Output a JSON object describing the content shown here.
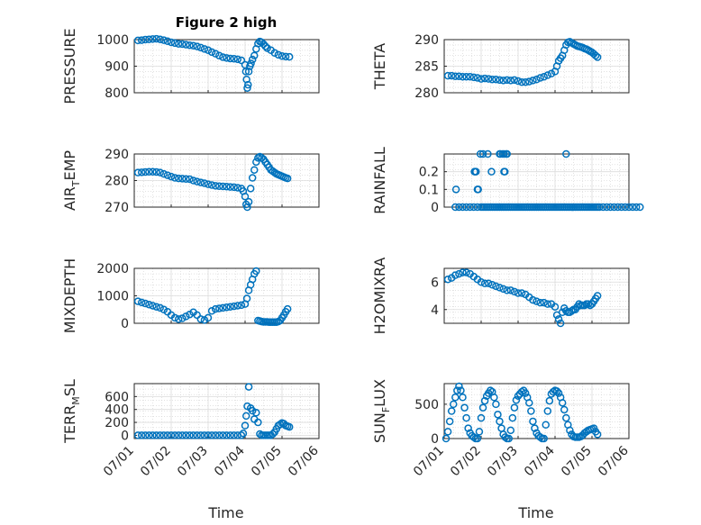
{
  "figure": {
    "title": "Figure 2 high",
    "xlabel": "Time"
  },
  "colors": {
    "marker": "#0072BD",
    "axes": "#262626",
    "grid": "#dcdcdc"
  },
  "chart_data": [
    {
      "type": "scatter",
      "ylabel": [
        "PRESSURE"
      ],
      "title": "Figure 2 high",
      "ylim": [
        800,
        1000
      ],
      "yticks": [
        800,
        900,
        1000
      ],
      "xlim": [
        "07/01",
        "07/06"
      ],
      "xticks": [],
      "x_day": [
        0.1,
        0.2,
        0.3,
        0.4,
        0.5,
        0.6,
        0.7,
        0.8,
        0.9,
        1.0,
        1.1,
        1.2,
        1.3,
        1.4,
        1.5,
        1.6,
        1.7,
        1.8,
        1.9,
        2.0,
        2.1,
        2.2,
        2.3,
        2.4,
        2.5,
        2.6,
        2.7,
        2.8,
        2.9,
        3.0,
        3.02,
        3.04,
        3.06,
        3.08,
        3.1,
        3.13,
        3.16,
        3.2,
        3.25,
        3.3,
        3.35,
        3.4,
        3.45,
        3.5,
        3.55,
        3.6,
        3.7,
        3.8,
        3.9,
        4.0,
        4.1,
        4.2
      ],
      "y": [
        997,
        998,
        1000,
        1001,
        1002,
        1003,
        1001,
        998,
        994,
        990,
        987,
        984,
        983,
        981,
        979,
        977,
        974,
        970,
        965,
        960,
        953,
        947,
        940,
        934,
        931,
        929,
        928,
        926,
        922,
        905,
        880,
        850,
        818,
        830,
        880,
        900,
        910,
        925,
        940,
        965,
        985,
        993,
        990,
        983,
        975,
        968,
        960,
        950,
        943,
        938,
        936,
        935
      ]
    },
    {
      "type": "scatter",
      "ylabel": [
        "THETA"
      ],
      "ylim": [
        280,
        290
      ],
      "yticks": [
        280,
        285,
        290
      ],
      "xlim": [
        "07/01",
        "07/06"
      ],
      "xticks": [],
      "x_day": [
        0.1,
        0.2,
        0.3,
        0.4,
        0.5,
        0.6,
        0.7,
        0.8,
        0.9,
        1.0,
        1.1,
        1.2,
        1.3,
        1.4,
        1.5,
        1.6,
        1.7,
        1.8,
        1.9,
        2.0,
        2.1,
        2.2,
        2.3,
        2.4,
        2.5,
        2.6,
        2.7,
        2.8,
        2.9,
        3.0,
        3.05,
        3.1,
        3.15,
        3.2,
        3.25,
        3.3,
        3.35,
        3.4,
        3.45,
        3.5,
        3.55,
        3.6,
        3.65,
        3.7,
        3.75,
        3.8,
        3.85,
        3.9,
        3.95,
        4.0,
        4.05,
        4.1,
        4.15
      ],
      "y": [
        283.2,
        283.2,
        283.1,
        283.1,
        283.0,
        283.0,
        283.0,
        282.9,
        282.8,
        282.6,
        282.7,
        282.6,
        282.5,
        282.5,
        282.4,
        282.3,
        282.4,
        282.3,
        282.4,
        282.2,
        282.0,
        282.0,
        282.1,
        282.3,
        282.5,
        282.8,
        283.0,
        283.3,
        283.6,
        284.0,
        285.0,
        286.0,
        286.5,
        287.0,
        288.0,
        289.0,
        289.5,
        289.6,
        289.4,
        289.2,
        289.0,
        288.8,
        288.7,
        288.6,
        288.5,
        288.3,
        288.2,
        288.0,
        287.8,
        287.6,
        287.3,
        287.0,
        286.7
      ]
    },
    {
      "type": "scatter",
      "ylabel": [
        "AIR",
        "T",
        "EMP"
      ],
      "ylim": [
        270,
        290
      ],
      "yticks": [
        270,
        280,
        290
      ],
      "xlim": [
        "07/01",
        "07/06"
      ],
      "xticks": [],
      "x_day": [
        0.1,
        0.2,
        0.3,
        0.4,
        0.5,
        0.6,
        0.7,
        0.8,
        0.9,
        1.0,
        1.1,
        1.2,
        1.3,
        1.4,
        1.5,
        1.6,
        1.7,
        1.8,
        1.9,
        2.0,
        2.1,
        2.2,
        2.3,
        2.4,
        2.5,
        2.6,
        2.7,
        2.8,
        2.9,
        2.95,
        3.0,
        3.03,
        3.06,
        3.1,
        3.15,
        3.2,
        3.25,
        3.3,
        3.35,
        3.4,
        3.45,
        3.5,
        3.55,
        3.6,
        3.65,
        3.7,
        3.75,
        3.8,
        3.85,
        3.9,
        3.95,
        4.0,
        4.05,
        4.1,
        4.15
      ],
      "y": [
        283.0,
        283.1,
        283.2,
        283.3,
        283.3,
        283.2,
        283.0,
        282.5,
        282.0,
        281.5,
        281.0,
        280.8,
        280.7,
        280.6,
        280.5,
        280.0,
        279.6,
        279.3,
        279.0,
        278.6,
        278.3,
        278.0,
        277.9,
        277.8,
        277.7,
        277.6,
        277.5,
        277.3,
        277.0,
        276.0,
        274.0,
        271.0,
        270.0,
        272.0,
        277.0,
        281.0,
        284.0,
        287.0,
        288.5,
        289.0,
        288.5,
        288.0,
        287.0,
        286.0,
        285.0,
        284.0,
        283.5,
        283.0,
        282.5,
        282.2,
        281.9,
        281.6,
        281.3,
        281.0,
        280.8
      ]
    },
    {
      "type": "scatter",
      "ylabel": [
        "RAINFALL"
      ],
      "ylim": [
        0,
        0.3
      ],
      "yticks": [
        0,
        0.1,
        0.2
      ],
      "xlim": [
        "07/01",
        "07/06"
      ],
      "xticks": [],
      "x_day": [
        0.3,
        0.4,
        0.5,
        0.6,
        0.7,
        0.8,
        0.9,
        1.0,
        1.05,
        1.1,
        1.15,
        1.2,
        1.25,
        1.3,
        1.35,
        1.4,
        1.45,
        1.5,
        1.55,
        1.6,
        1.65,
        1.7,
        1.75,
        1.8,
        1.85,
        1.9,
        1.95,
        2.0,
        2.05,
        2.1,
        2.15,
        2.2,
        2.25,
        2.3,
        2.35,
        2.4,
        2.45,
        2.5,
        2.55,
        2.6,
        2.65,
        2.7,
        2.75,
        2.8,
        2.85,
        2.9,
        2.95,
        3.0,
        3.05,
        3.1,
        3.15,
        3.2,
        3.25,
        3.3,
        3.35,
        3.4,
        3.45,
        3.5,
        3.55,
        3.6,
        3.65,
        3.7,
        3.75,
        3.8,
        3.85,
        3.9,
        3.95,
        4.0,
        4.05,
        4.1,
        4.15,
        4.2,
        4.3,
        4.4,
        4.5,
        4.6,
        4.7,
        4.8,
        4.9,
        5.0,
        5.1,
        5.2,
        5.3,
        0.32,
        0.82,
        0.84,
        0.9,
        0.92,
        0.86,
        0.98,
        1.05,
        1.18,
        1.28,
        1.5,
        1.52,
        1.58,
        1.62,
        1.68,
        1.7,
        1.62,
        1.64,
        3.3
      ],
      "y": [
        0,
        0,
        0,
        0,
        0,
        0,
        0,
        0,
        0,
        0,
        0,
        0,
        0,
        0,
        0,
        0,
        0,
        0,
        0,
        0,
        0,
        0,
        0,
        0,
        0,
        0,
        0,
        0,
        0,
        0,
        0,
        0,
        0,
        0,
        0,
        0,
        0,
        0,
        0,
        0,
        0,
        0,
        0,
        0,
        0,
        0,
        0,
        0,
        0,
        0,
        0,
        0,
        0,
        0,
        0,
        0,
        0,
        0,
        0,
        0,
        0,
        0,
        0,
        0,
        0,
        0,
        0,
        0,
        0,
        0,
        0,
        0,
        0,
        0,
        0,
        0,
        0,
        0,
        0,
        0,
        0,
        0,
        0,
        0.1,
        0.2,
        0.2,
        0.1,
        0.1,
        0.2,
        0.3,
        0.3,
        0.3,
        0.2,
        0.3,
        0.3,
        0.3,
        0.3,
        0.3,
        0.3,
        0.2,
        0.2,
        0.3
      ]
    },
    {
      "type": "scatter",
      "ylabel": [
        "MIXDEPTH"
      ],
      "ylim": [
        0,
        2000
      ],
      "yticks": [
        0,
        1000,
        2000
      ],
      "xlim": [
        "07/01",
        "07/06"
      ],
      "xticks": [],
      "x_day": [
        0.1,
        0.2,
        0.3,
        0.4,
        0.5,
        0.6,
        0.7,
        0.8,
        0.9,
        1.0,
        1.1,
        1.2,
        1.3,
        1.4,
        1.5,
        1.6,
        1.7,
        1.8,
        1.9,
        2.0,
        2.1,
        2.2,
        2.3,
        2.4,
        2.5,
        2.6,
        2.7,
        2.8,
        2.9,
        3.0,
        3.05,
        3.1,
        3.15,
        3.2,
        3.25,
        3.3,
        3.35,
        3.4,
        3.45,
        3.5,
        3.55,
        3.6,
        3.65,
        3.7,
        3.75,
        3.8,
        3.85,
        3.9,
        3.95,
        4.0,
        4.05,
        4.1,
        4.15
      ],
      "y": [
        800,
        760,
        720,
        680,
        640,
        600,
        560,
        500,
        420,
        300,
        200,
        150,
        180,
        250,
        320,
        400,
        300,
        150,
        120,
        200,
        450,
        520,
        540,
        560,
        580,
        600,
        620,
        640,
        660,
        700,
        900,
        1200,
        1400,
        1600,
        1800,
        1900,
        100,
        80,
        60,
        50,
        50,
        50,
        40,
        40,
        40,
        40,
        40,
        60,
        100,
        200,
        300,
        420,
        520
      ]
    },
    {
      "type": "scatter",
      "ylabel": [
        "H2OMIXRA"
      ],
      "ylim": [
        3,
        7
      ],
      "yticks": [
        4,
        6
      ],
      "xlim": [
        "07/01",
        "07/06"
      ],
      "xticks": [],
      "x_day": [
        0.1,
        0.2,
        0.3,
        0.4,
        0.5,
        0.6,
        0.7,
        0.8,
        0.9,
        1.0,
        1.1,
        1.2,
        1.3,
        1.4,
        1.5,
        1.6,
        1.7,
        1.8,
        1.9,
        2.0,
        2.1,
        2.2,
        2.3,
        2.4,
        2.5,
        2.6,
        2.7,
        2.8,
        2.9,
        3.0,
        3.05,
        3.1,
        3.15,
        3.2,
        3.25,
        3.3,
        3.35,
        3.4,
        3.45,
        3.5,
        3.55,
        3.6,
        3.65,
        3.7,
        3.75,
        3.8,
        3.85,
        3.9,
        3.95,
        4.0,
        4.05,
        4.1,
        4.15
      ],
      "y": [
        6.2,
        6.3,
        6.5,
        6.6,
        6.7,
        6.7,
        6.6,
        6.4,
        6.2,
        6.0,
        5.9,
        5.9,
        5.8,
        5.7,
        5.6,
        5.5,
        5.4,
        5.4,
        5.3,
        5.2,
        5.2,
        5.1,
        4.9,
        4.7,
        4.6,
        4.5,
        4.5,
        4.4,
        4.4,
        4.2,
        3.6,
        3.3,
        3.0,
        3.8,
        4.1,
        3.9,
        3.8,
        3.8,
        3.9,
        4.0,
        4.0,
        4.2,
        4.4,
        4.3,
        4.3,
        4.3,
        4.4,
        4.4,
        4.3,
        4.4,
        4.6,
        4.8,
        5.0
      ]
    },
    {
      "type": "scatter",
      "ylabel": [
        "TERR",
        "M",
        "SL"
      ],
      "ylim": [
        -50,
        800
      ],
      "yticks": [
        0,
        200,
        400,
        600
      ],
      "xlim": [
        "07/01",
        "07/06"
      ],
      "xticks": [
        "07/01",
        "07/02",
        "07/03",
        "07/04",
        "07/05",
        "07/06"
      ],
      "x_day": [
        0.1,
        0.2,
        0.3,
        0.4,
        0.5,
        0.6,
        0.7,
        0.8,
        0.9,
        1.0,
        1.1,
        1.2,
        1.3,
        1.4,
        1.5,
        1.6,
        1.7,
        1.8,
        1.9,
        2.0,
        2.1,
        2.2,
        2.3,
        2.4,
        2.5,
        2.6,
        2.7,
        2.8,
        2.9,
        2.95,
        3.0,
        3.03,
        3.06,
        3.1,
        3.15,
        3.2,
        3.25,
        3.3,
        3.35,
        3.4,
        3.45,
        3.5,
        3.55,
        3.6,
        3.65,
        3.7,
        3.75,
        3.8,
        3.85,
        3.9,
        3.95,
        4.0,
        4.05,
        4.1,
        4.15,
        4.2
      ],
      "y": [
        0,
        0,
        0,
        0,
        0,
        0,
        0,
        0,
        0,
        0,
        0,
        0,
        0,
        0,
        0,
        0,
        0,
        0,
        0,
        0,
        0,
        0,
        0,
        0,
        0,
        0,
        0,
        0,
        0,
        30,
        150,
        300,
        450,
        750,
        420,
        380,
        250,
        350,
        200,
        20,
        0,
        0,
        0,
        0,
        0,
        0,
        20,
        50,
        100,
        150,
        170,
        190,
        180,
        150,
        140,
        130
      ]
    },
    {
      "type": "scatter",
      "ylabel": [
        "SUN",
        "F",
        "LUX"
      ],
      "ylim": [
        0,
        800
      ],
      "yticks": [
        0,
        500
      ],
      "xlim": [
        "07/01",
        "07/06"
      ],
      "xticks": [
        "07/01",
        "07/02",
        "07/03",
        "07/04",
        "07/05",
        "07/06"
      ],
      "x_day": [
        0.05,
        0.1,
        0.15,
        0.2,
        0.25,
        0.3,
        0.35,
        0.4,
        0.45,
        0.5,
        0.55,
        0.6,
        0.65,
        0.7,
        0.75,
        0.8,
        0.85,
        0.9,
        0.95,
        1.0,
        1.05,
        1.1,
        1.15,
        1.2,
        1.25,
        1.3,
        1.35,
        1.4,
        1.45,
        1.5,
        1.55,
        1.6,
        1.65,
        1.7,
        1.75,
        1.8,
        1.85,
        1.9,
        1.95,
        2.0,
        2.05,
        2.1,
        2.15,
        2.2,
        2.25,
        2.3,
        2.35,
        2.4,
        2.45,
        2.5,
        2.55,
        2.6,
        2.65,
        2.7,
        2.75,
        2.8,
        2.85,
        2.9,
        2.95,
        3.0,
        3.05,
        3.1,
        3.15,
        3.2,
        3.25,
        3.3,
        3.35,
        3.4,
        3.45,
        3.5,
        3.55,
        3.6,
        3.65,
        3.7,
        3.75,
        3.8,
        3.85,
        3.9,
        3.95,
        4.0,
        4.05,
        4.1,
        4.15
      ],
      "y": [
        0,
        100,
        250,
        400,
        500,
        600,
        700,
        760,
        700,
        600,
        450,
        300,
        150,
        80,
        40,
        20,
        0,
        0,
        100,
        300,
        450,
        550,
        620,
        660,
        700,
        680,
        600,
        500,
        350,
        250,
        150,
        60,
        20,
        0,
        0,
        120,
        300,
        450,
        560,
        620,
        650,
        680,
        700,
        660,
        600,
        520,
        400,
        250,
        150,
        80,
        40,
        20,
        0,
        0,
        200,
        400,
        550,
        650,
        680,
        700,
        690,
        660,
        600,
        520,
        420,
        300,
        200,
        120,
        60,
        30,
        20,
        20,
        20,
        30,
        50,
        80,
        100,
        120,
        130,
        140,
        150,
        100,
        60
      ]
    }
  ]
}
